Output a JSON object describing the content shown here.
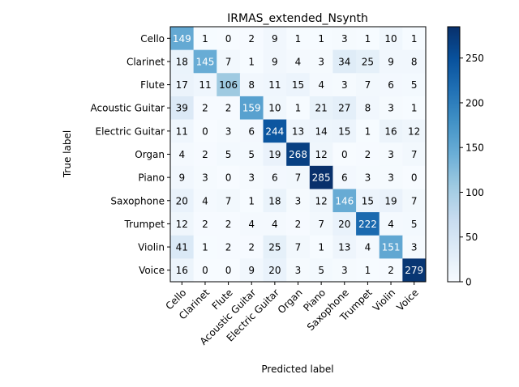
{
  "chart_data": {
    "type": "heatmap",
    "title": "IRMAS_extended_Nsynth",
    "xlabel": "Predicted label",
    "ylabel": "True label",
    "labels": [
      "Cello",
      "Clarinet",
      "Flute",
      "Acoustic Guitar",
      "Electric Guitar",
      "Organ",
      "Piano",
      "Saxophone",
      "Trumpet",
      "Violin",
      "Voice"
    ],
    "matrix": [
      [
        149,
        1,
        0,
        2,
        9,
        1,
        1,
        3,
        1,
        10,
        1
      ],
      [
        18,
        145,
        7,
        1,
        9,
        4,
        3,
        34,
        25,
        9,
        8
      ],
      [
        17,
        11,
        106,
        8,
        11,
        15,
        4,
        3,
        7,
        6,
        5
      ],
      [
        39,
        2,
        2,
        159,
        10,
        1,
        21,
        27,
        8,
        3,
        1
      ],
      [
        11,
        0,
        3,
        6,
        244,
        13,
        14,
        15,
        1,
        16,
        12
      ],
      [
        4,
        2,
        5,
        5,
        19,
        268,
        12,
        0,
        2,
        3,
        7
      ],
      [
        9,
        3,
        0,
        3,
        6,
        7,
        285,
        6,
        3,
        3,
        0
      ],
      [
        20,
        4,
        7,
        1,
        18,
        3,
        12,
        146,
        15,
        19,
        7
      ],
      [
        12,
        2,
        2,
        4,
        4,
        2,
        7,
        20,
        222,
        4,
        5
      ],
      [
        41,
        1,
        2,
        2,
        25,
        7,
        1,
        13,
        4,
        151,
        3
      ],
      [
        16,
        0,
        0,
        9,
        20,
        3,
        5,
        3,
        1,
        2,
        279
      ]
    ],
    "colormap": "Blues",
    "value_range": [
      0,
      285
    ],
    "colorbar_ticks": [
      0,
      50,
      100,
      150,
      200,
      250
    ],
    "grid": false
  }
}
